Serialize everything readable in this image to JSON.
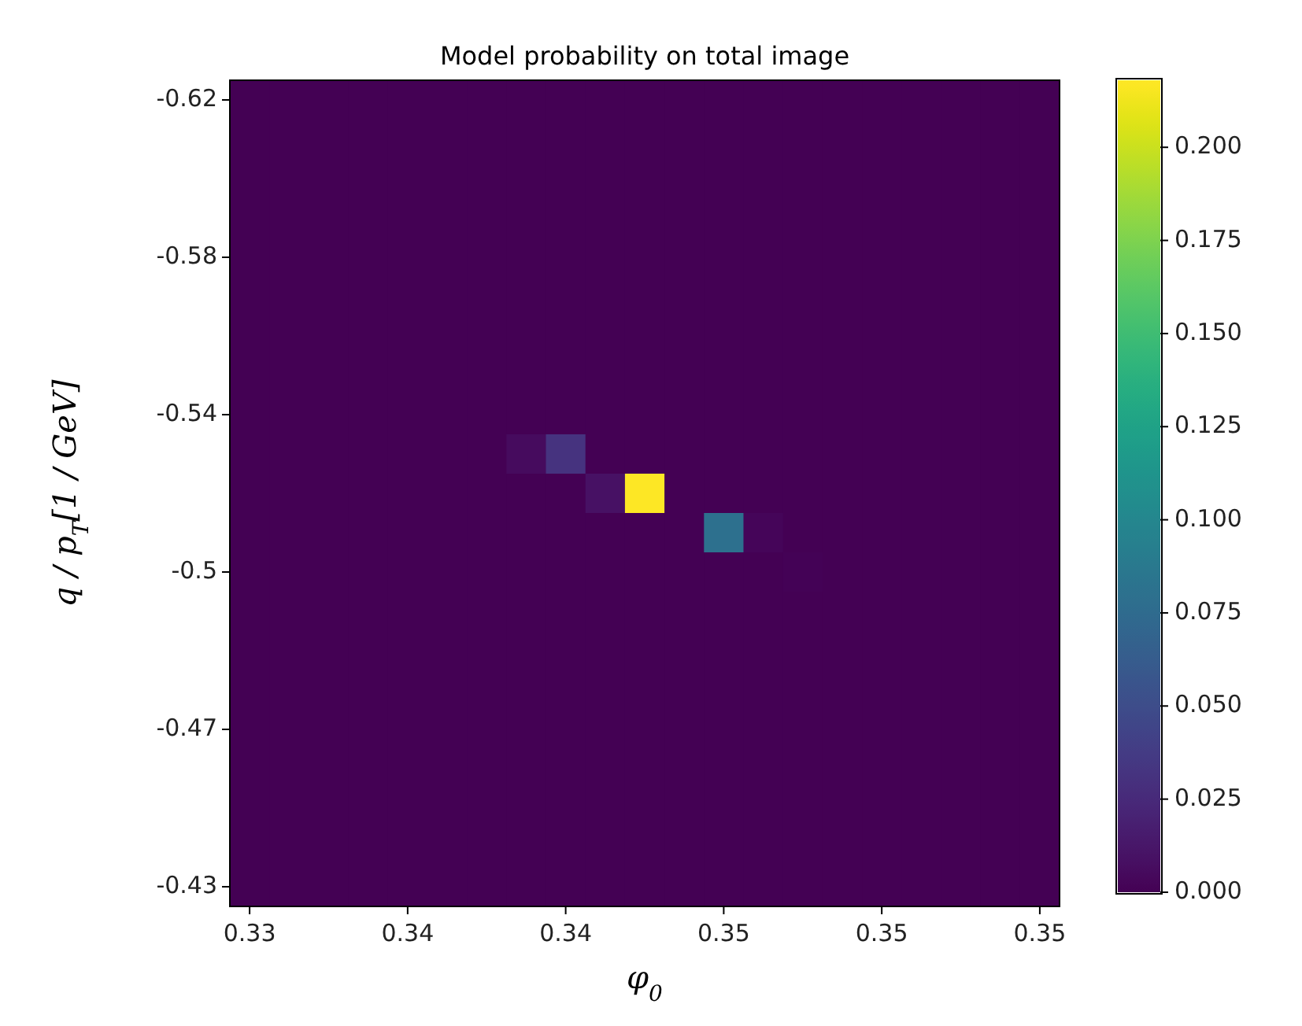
{
  "chart_data": {
    "type": "heatmap",
    "title": "Model probability on total image",
    "xlabel": "φ$_{0}$",
    "ylabel": "q / p$_{T}$[1 / GeV]",
    "categories": [
      "0.33",
      null,
      null,
      null,
      "0.34",
      null,
      null,
      null,
      "0.34",
      null,
      null,
      null,
      "0.35",
      null,
      null,
      null,
      "0.35",
      null,
      null,
      null,
      "0.35"
    ],
    "y_categories": [
      "-0.62",
      null,
      null,
      null,
      "-0.58",
      null,
      null,
      null,
      "-0.54",
      null,
      null,
      null,
      "-0.5",
      null,
      null,
      null,
      "-0.47",
      null,
      null,
      null,
      "-0.43"
    ],
    "clim": [
      0,
      0.218
    ],
    "cticks": [
      {
        "value": 0,
        "label": "0.000"
      },
      {
        "value": 0.025,
        "label": "0.025"
      },
      {
        "value": 0.05,
        "label": "0.050"
      },
      {
        "value": 0.075,
        "label": "0.075"
      },
      {
        "value": 0.1,
        "label": "0.100"
      },
      {
        "value": 0.125,
        "label": "0.125"
      },
      {
        "value": 0.15,
        "label": "0.150"
      },
      {
        "value": 0.175,
        "label": "0.175"
      },
      {
        "value": 0.2,
        "label": "0.200"
      }
    ],
    "cells": [
      [
        0,
        0,
        0,
        0,
        0,
        0,
        0,
        0,
        0,
        0,
        0,
        0,
        0,
        0,
        0,
        0,
        0,
        0,
        0,
        0,
        0
      ],
      [
        0,
        0,
        0,
        0,
        0,
        0,
        0,
        0,
        0,
        0,
        0,
        0,
        0,
        0,
        0,
        0,
        0,
        0,
        0,
        0,
        0
      ],
      [
        0,
        0,
        0,
        0,
        0,
        0,
        0,
        0,
        0,
        0,
        0,
        0,
        0,
        0,
        0,
        0,
        0,
        0,
        0,
        0,
        0
      ],
      [
        0,
        0,
        0,
        0,
        0,
        0,
        0,
        0,
        0,
        0,
        0,
        0,
        0,
        0,
        0,
        0,
        0,
        0,
        0,
        0,
        0
      ],
      [
        0,
        0,
        0,
        0,
        0,
        0,
        0,
        0,
        0,
        0,
        0,
        0,
        0,
        0,
        0,
        0,
        0,
        0,
        0,
        0,
        0
      ],
      [
        0,
        0,
        0,
        0,
        0,
        0,
        0,
        0,
        0,
        0,
        0,
        0,
        0,
        0,
        0,
        0,
        0,
        0,
        0,
        0,
        0
      ],
      [
        0,
        0,
        0,
        0,
        0,
        0,
        0,
        0,
        0,
        0,
        0,
        0,
        0,
        0,
        0,
        0,
        0,
        0,
        0,
        0,
        0
      ],
      [
        0,
        0,
        0,
        0,
        0,
        0,
        0,
        0,
        0,
        0,
        0,
        0,
        0,
        0,
        0,
        0,
        0,
        0,
        0,
        0,
        0
      ],
      [
        0,
        0,
        0,
        0,
        0,
        0,
        0,
        0,
        0,
        0,
        0,
        0,
        0,
        0,
        0,
        0,
        0,
        0,
        0,
        0,
        0
      ],
      [
        0,
        0,
        0,
        0,
        0,
        0,
        0,
        0.006,
        0.032,
        0,
        0,
        0,
        0,
        0,
        0,
        0,
        0,
        0,
        0,
        0,
        0
      ],
      [
        0,
        0,
        0,
        0,
        0,
        0,
        0,
        0,
        0,
        0.01,
        0.218,
        0,
        0,
        0,
        0,
        0,
        0,
        0,
        0,
        0,
        0
      ],
      [
        0,
        0,
        0,
        0,
        0,
        0,
        0,
        0,
        0,
        0,
        0,
        0,
        0.08,
        0.003,
        0,
        0,
        0,
        0,
        0,
        0,
        0
      ],
      [
        0,
        0,
        0,
        0,
        0,
        0,
        0,
        0,
        0,
        0,
        0,
        0,
        0,
        0,
        0.001,
        0,
        0,
        0,
        0,
        0,
        0
      ],
      [
        0,
        0,
        0,
        0,
        0,
        0,
        0,
        0,
        0,
        0,
        0,
        0,
        0,
        0,
        0,
        0,
        0,
        0,
        0,
        0,
        0
      ],
      [
        0,
        0,
        0,
        0,
        0,
        0,
        0,
        0,
        0,
        0,
        0,
        0,
        0,
        0,
        0,
        0,
        0,
        0,
        0,
        0,
        0
      ],
      [
        0,
        0,
        0,
        0,
        0,
        0,
        0,
        0,
        0,
        0,
        0,
        0,
        0,
        0,
        0,
        0,
        0,
        0,
        0,
        0,
        0
      ],
      [
        0,
        0,
        0,
        0,
        0,
        0,
        0,
        0,
        0,
        0,
        0,
        0,
        0,
        0,
        0,
        0,
        0,
        0,
        0,
        0,
        0
      ],
      [
        0,
        0,
        0,
        0,
        0,
        0,
        0,
        0,
        0,
        0,
        0,
        0,
        0,
        0,
        0,
        0,
        0,
        0,
        0,
        0,
        0
      ],
      [
        0,
        0,
        0,
        0,
        0,
        0,
        0,
        0,
        0,
        0,
        0,
        0,
        0,
        0,
        0,
        0,
        0,
        0,
        0,
        0,
        0
      ],
      [
        0,
        0,
        0,
        0,
        0,
        0,
        0,
        0,
        0,
        0,
        0,
        0,
        0,
        0,
        0,
        0,
        0,
        0,
        0,
        0,
        0
      ],
      [
        0,
        0,
        0,
        0,
        0,
        0,
        0,
        0,
        0,
        0,
        0,
        0,
        0,
        0,
        0,
        0,
        0,
        0,
        0,
        0,
        0
      ]
    ]
  }
}
